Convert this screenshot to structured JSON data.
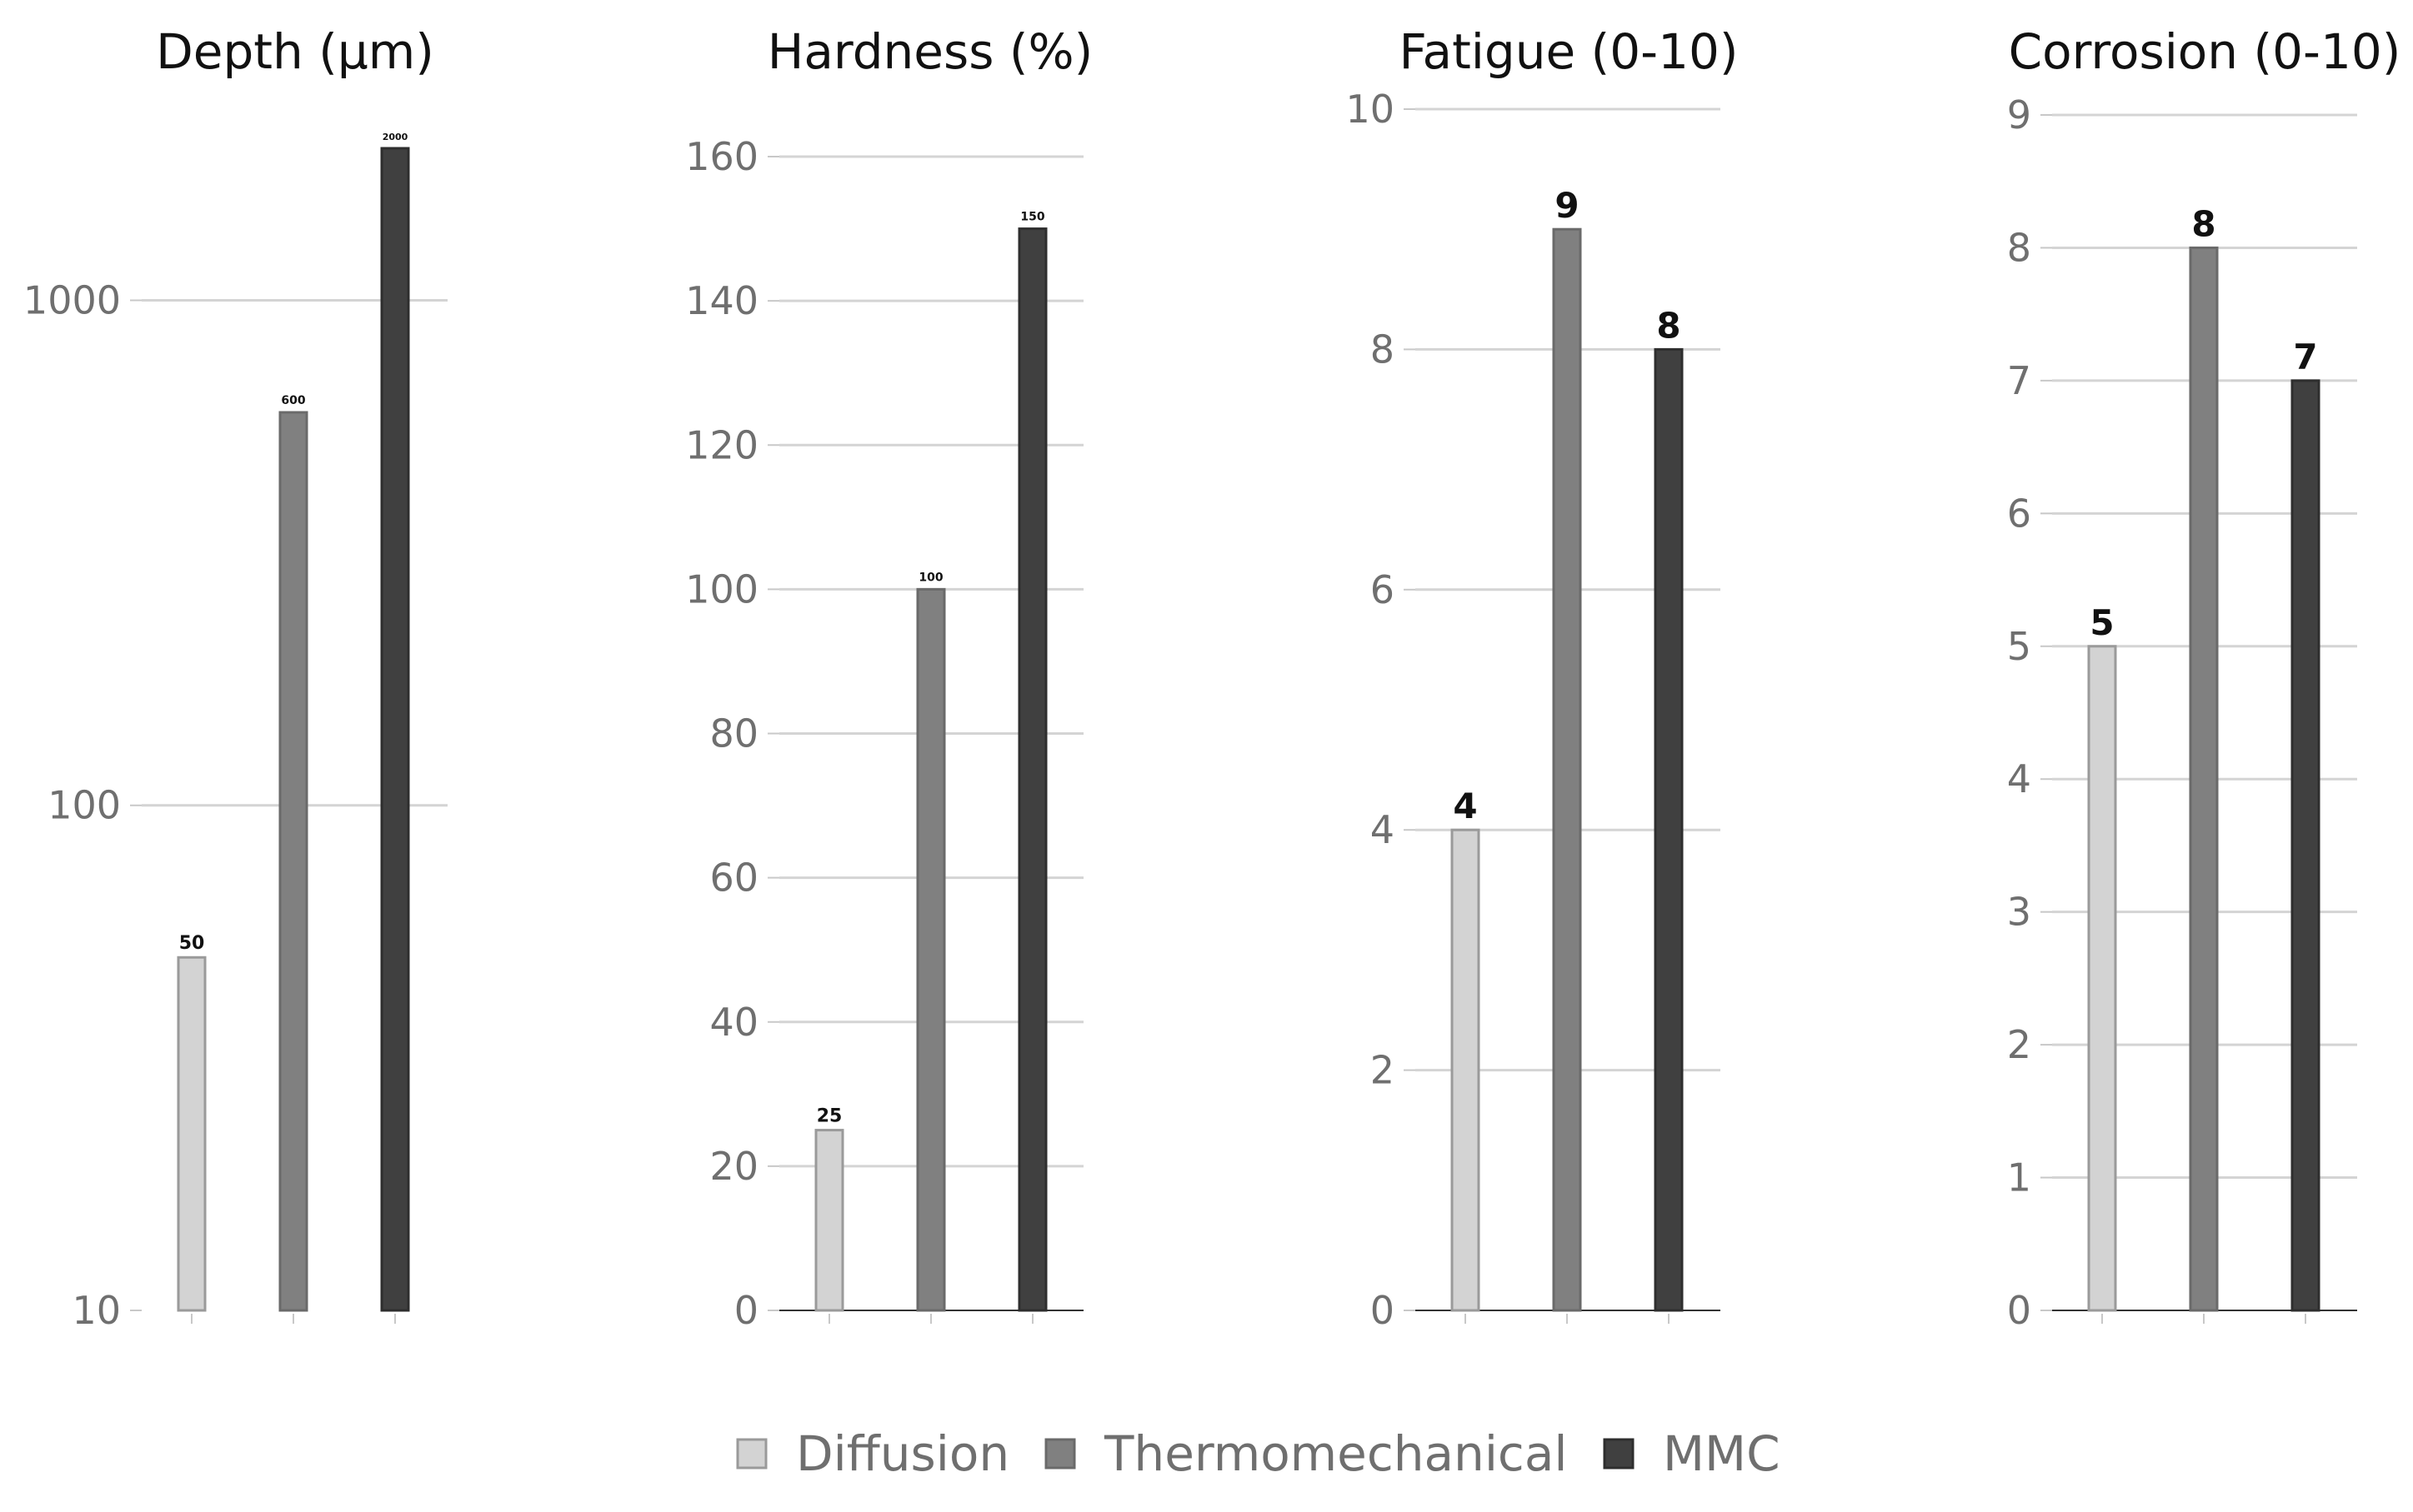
{
  "legend": [
    {
      "name": "Diffusion",
      "color": "#d3d3d3"
    },
    {
      "name": "Thermomechanical",
      "color": "#808080"
    },
    {
      "name": "MMC",
      "color": "#404040"
    }
  ],
  "chart_data": [
    {
      "type": "bar",
      "title": "Depth (μm)",
      "scale": "log",
      "categories": [
        "Diffusion",
        "Thermomechanical",
        "MMC"
      ],
      "values": [
        50,
        600,
        2000
      ],
      "ylim": [
        10,
        2000
      ],
      "yticks": [
        10,
        100,
        1000
      ],
      "grid": true,
      "label_size": "small"
    },
    {
      "type": "bar",
      "title": "Hardness (%)",
      "scale": "linear",
      "categories": [
        "Diffusion",
        "Thermomechanical",
        "MMC"
      ],
      "values": [
        25,
        100,
        150
      ],
      "ylim": [
        0,
        160
      ],
      "yticks": [
        0,
        20,
        40,
        60,
        80,
        100,
        120,
        140,
        160
      ],
      "grid": true,
      "label_size": "small"
    },
    {
      "type": "bar",
      "title": "Fatigue (0-10)",
      "scale": "linear",
      "categories": [
        "Diffusion",
        "Thermomechanical",
        "MMC"
      ],
      "values": [
        4,
        9,
        8
      ],
      "ylim": [
        0,
        10
      ],
      "yticks": [
        0,
        2,
        4,
        6,
        8,
        10
      ],
      "grid": true,
      "label_size": "large"
    },
    {
      "type": "bar",
      "title": "Corrosion (0-10)",
      "scale": "linear",
      "categories": [
        "Diffusion",
        "Thermomechanical",
        "MMC"
      ],
      "values": [
        5,
        8,
        7
      ],
      "ylim": [
        0,
        9
      ],
      "yticks": [
        0,
        1,
        2,
        3,
        4,
        5,
        6,
        7,
        8,
        9
      ],
      "grid": true,
      "label_size": "large"
    }
  ]
}
